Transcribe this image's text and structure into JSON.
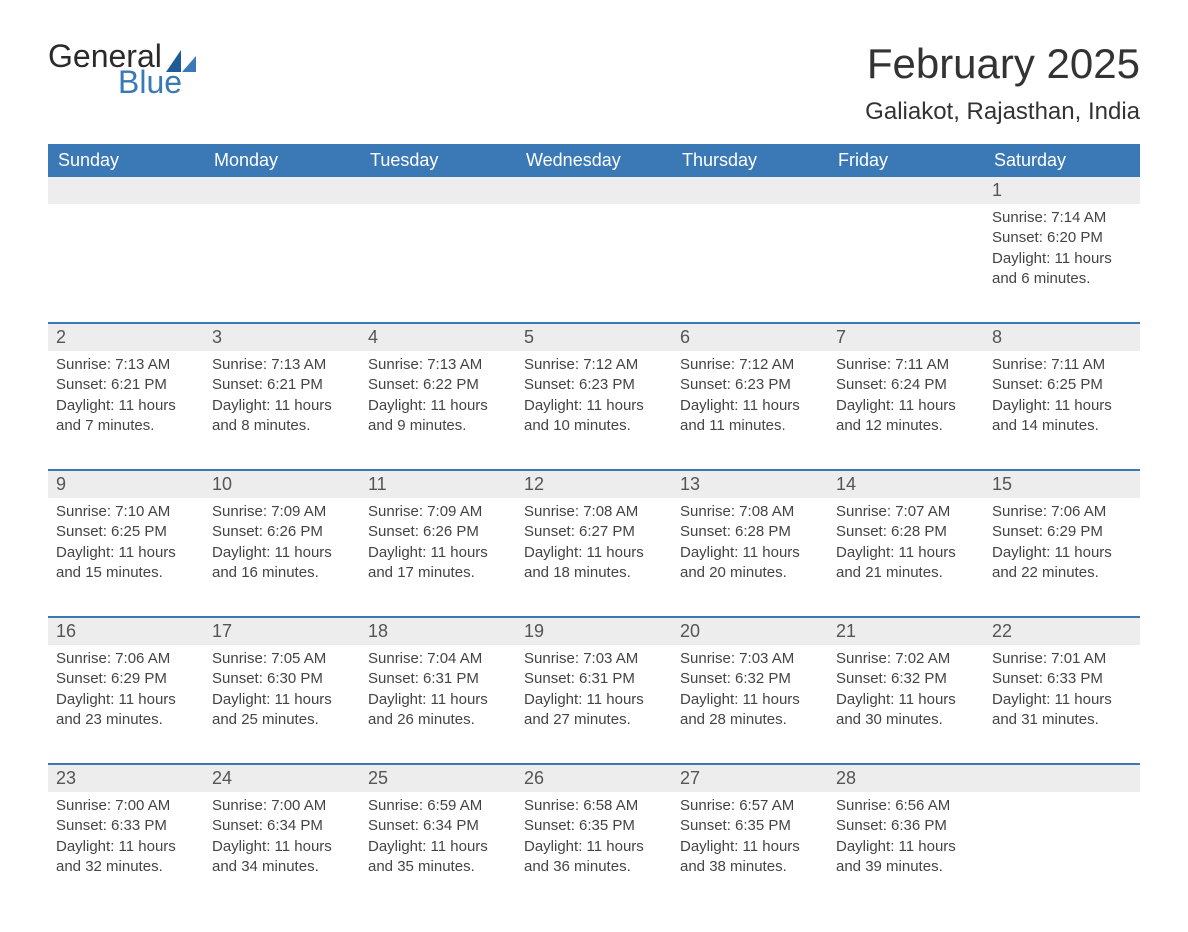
{
  "logo": {
    "text1": "General",
    "text2": "Blue",
    "grey_color": "#2a2a2a",
    "blue_color": "#3a78b6",
    "sail_dark": "#1f5b94",
    "sail_light": "#3a78b6"
  },
  "title": "February 2025",
  "location": "Galiakot, Rajasthan, India",
  "colors": {
    "header_bg": "#3a78b6",
    "header_text": "#ffffff",
    "daynum_bg": "#ededed",
    "border": "#3a78b6",
    "body_text": "#444444",
    "background": "#ffffff"
  },
  "fonts": {
    "title_size_pt": 31,
    "location_size_pt": 18,
    "dow_size_pt": 14,
    "daynum_size_pt": 14,
    "body_size_pt": 11
  },
  "days_of_week": [
    "Sunday",
    "Monday",
    "Tuesday",
    "Wednesday",
    "Thursday",
    "Friday",
    "Saturday"
  ],
  "weeks": [
    [
      {
        "day": "",
        "sunrise": "",
        "sunset": "",
        "daylight": ""
      },
      {
        "day": "",
        "sunrise": "",
        "sunset": "",
        "daylight": ""
      },
      {
        "day": "",
        "sunrise": "",
        "sunset": "",
        "daylight": ""
      },
      {
        "day": "",
        "sunrise": "",
        "sunset": "",
        "daylight": ""
      },
      {
        "day": "",
        "sunrise": "",
        "sunset": "",
        "daylight": ""
      },
      {
        "day": "",
        "sunrise": "",
        "sunset": "",
        "daylight": ""
      },
      {
        "day": "1",
        "sunrise": "Sunrise: 7:14 AM",
        "sunset": "Sunset: 6:20 PM",
        "daylight": "Daylight: 11 hours and 6 minutes."
      }
    ],
    [
      {
        "day": "2",
        "sunrise": "Sunrise: 7:13 AM",
        "sunset": "Sunset: 6:21 PM",
        "daylight": "Daylight: 11 hours and 7 minutes."
      },
      {
        "day": "3",
        "sunrise": "Sunrise: 7:13 AM",
        "sunset": "Sunset: 6:21 PM",
        "daylight": "Daylight: 11 hours and 8 minutes."
      },
      {
        "day": "4",
        "sunrise": "Sunrise: 7:13 AM",
        "sunset": "Sunset: 6:22 PM",
        "daylight": "Daylight: 11 hours and 9 minutes."
      },
      {
        "day": "5",
        "sunrise": "Sunrise: 7:12 AM",
        "sunset": "Sunset: 6:23 PM",
        "daylight": "Daylight: 11 hours and 10 minutes."
      },
      {
        "day": "6",
        "sunrise": "Sunrise: 7:12 AM",
        "sunset": "Sunset: 6:23 PM",
        "daylight": "Daylight: 11 hours and 11 minutes."
      },
      {
        "day": "7",
        "sunrise": "Sunrise: 7:11 AM",
        "sunset": "Sunset: 6:24 PM",
        "daylight": "Daylight: 11 hours and 12 minutes."
      },
      {
        "day": "8",
        "sunrise": "Sunrise: 7:11 AM",
        "sunset": "Sunset: 6:25 PM",
        "daylight": "Daylight: 11 hours and 14 minutes."
      }
    ],
    [
      {
        "day": "9",
        "sunrise": "Sunrise: 7:10 AM",
        "sunset": "Sunset: 6:25 PM",
        "daylight": "Daylight: 11 hours and 15 minutes."
      },
      {
        "day": "10",
        "sunrise": "Sunrise: 7:09 AM",
        "sunset": "Sunset: 6:26 PM",
        "daylight": "Daylight: 11 hours and 16 minutes."
      },
      {
        "day": "11",
        "sunrise": "Sunrise: 7:09 AM",
        "sunset": "Sunset: 6:26 PM",
        "daylight": "Daylight: 11 hours and 17 minutes."
      },
      {
        "day": "12",
        "sunrise": "Sunrise: 7:08 AM",
        "sunset": "Sunset: 6:27 PM",
        "daylight": "Daylight: 11 hours and 18 minutes."
      },
      {
        "day": "13",
        "sunrise": "Sunrise: 7:08 AM",
        "sunset": "Sunset: 6:28 PM",
        "daylight": "Daylight: 11 hours and 20 minutes."
      },
      {
        "day": "14",
        "sunrise": "Sunrise: 7:07 AM",
        "sunset": "Sunset: 6:28 PM",
        "daylight": "Daylight: 11 hours and 21 minutes."
      },
      {
        "day": "15",
        "sunrise": "Sunrise: 7:06 AM",
        "sunset": "Sunset: 6:29 PM",
        "daylight": "Daylight: 11 hours and 22 minutes."
      }
    ],
    [
      {
        "day": "16",
        "sunrise": "Sunrise: 7:06 AM",
        "sunset": "Sunset: 6:29 PM",
        "daylight": "Daylight: 11 hours and 23 minutes."
      },
      {
        "day": "17",
        "sunrise": "Sunrise: 7:05 AM",
        "sunset": "Sunset: 6:30 PM",
        "daylight": "Daylight: 11 hours and 25 minutes."
      },
      {
        "day": "18",
        "sunrise": "Sunrise: 7:04 AM",
        "sunset": "Sunset: 6:31 PM",
        "daylight": "Daylight: 11 hours and 26 minutes."
      },
      {
        "day": "19",
        "sunrise": "Sunrise: 7:03 AM",
        "sunset": "Sunset: 6:31 PM",
        "daylight": "Daylight: 11 hours and 27 minutes."
      },
      {
        "day": "20",
        "sunrise": "Sunrise: 7:03 AM",
        "sunset": "Sunset: 6:32 PM",
        "daylight": "Daylight: 11 hours and 28 minutes."
      },
      {
        "day": "21",
        "sunrise": "Sunrise: 7:02 AM",
        "sunset": "Sunset: 6:32 PM",
        "daylight": "Daylight: 11 hours and 30 minutes."
      },
      {
        "day": "22",
        "sunrise": "Sunrise: 7:01 AM",
        "sunset": "Sunset: 6:33 PM",
        "daylight": "Daylight: 11 hours and 31 minutes."
      }
    ],
    [
      {
        "day": "23",
        "sunrise": "Sunrise: 7:00 AM",
        "sunset": "Sunset: 6:33 PM",
        "daylight": "Daylight: 11 hours and 32 minutes."
      },
      {
        "day": "24",
        "sunrise": "Sunrise: 7:00 AM",
        "sunset": "Sunset: 6:34 PM",
        "daylight": "Daylight: 11 hours and 34 minutes."
      },
      {
        "day": "25",
        "sunrise": "Sunrise: 6:59 AM",
        "sunset": "Sunset: 6:34 PM",
        "daylight": "Daylight: 11 hours and 35 minutes."
      },
      {
        "day": "26",
        "sunrise": "Sunrise: 6:58 AM",
        "sunset": "Sunset: 6:35 PM",
        "daylight": "Daylight: 11 hours and 36 minutes."
      },
      {
        "day": "27",
        "sunrise": "Sunrise: 6:57 AM",
        "sunset": "Sunset: 6:35 PM",
        "daylight": "Daylight: 11 hours and 38 minutes."
      },
      {
        "day": "28",
        "sunrise": "Sunrise: 6:56 AM",
        "sunset": "Sunset: 6:36 PM",
        "daylight": "Daylight: 11 hours and 39 minutes."
      },
      {
        "day": "",
        "sunrise": "",
        "sunset": "",
        "daylight": ""
      }
    ]
  ]
}
